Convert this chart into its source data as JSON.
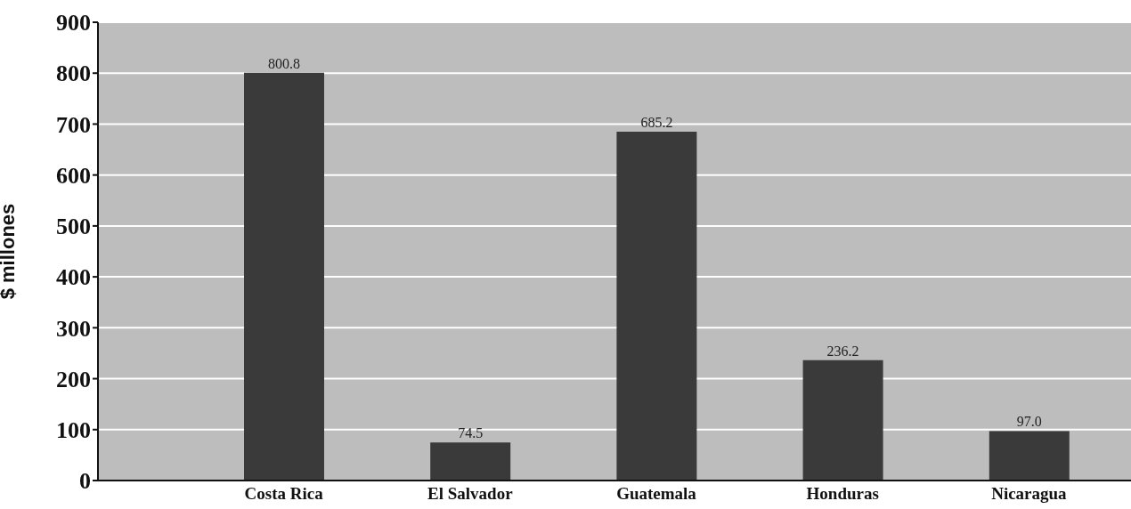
{
  "chart_data": {
    "type": "bar",
    "ylabel": "$ millones",
    "categories": [
      "Costa Rica",
      "El Salvador",
      "Guatemala",
      "Honduras",
      "Nicaragua"
    ],
    "values": [
      800.8,
      74.5,
      685.2,
      236.2,
      97.0
    ],
    "value_labels": [
      "800.8",
      "74.5",
      "685.2",
      "236.2",
      "97.0"
    ],
    "color": "#3a3a3a",
    "ylim": [
      0,
      900
    ],
    "yticks": [
      0,
      100,
      200,
      300,
      400,
      500,
      600,
      700,
      800,
      900
    ],
    "grid": "y"
  }
}
